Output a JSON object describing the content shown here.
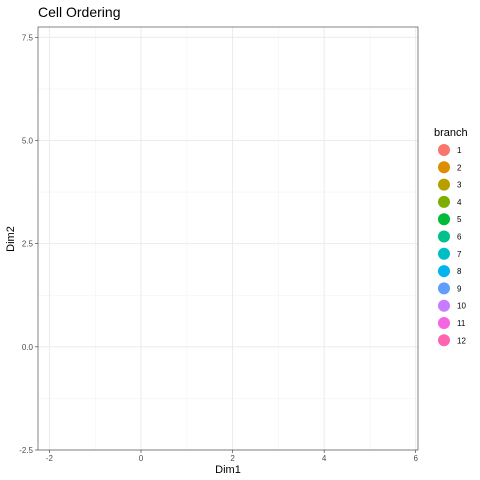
{
  "chart_data": {
    "type": "scatter",
    "title": "Cell Ordering",
    "xlabel": "Dim1",
    "ylabel": "Dim2",
    "xlim": [
      -2.25,
      6.05
    ],
    "ylim": [
      -2.5,
      7.75
    ],
    "x_ticks": [
      -2,
      0,
      2,
      4,
      6
    ],
    "x_tick_labels": [
      "-2",
      "0",
      "2",
      "4",
      "6"
    ],
    "y_ticks": [
      -2.5,
      0.0,
      2.5,
      5.0,
      7.5
    ],
    "y_tick_labels": [
      "-2.5",
      "0.0",
      "2.5",
      "5.0",
      "7.5"
    ],
    "x_minor": [
      -1,
      1,
      3,
      5
    ],
    "y_minor": [
      -1.25,
      1.25,
      3.75,
      6.25
    ],
    "grid": true,
    "legend_position": "right",
    "legend_title": "branch",
    "points": [],
    "series": [
      {
        "name": "1",
        "color": "#F8766D"
      },
      {
        "name": "2",
        "color": "#DE8C00"
      },
      {
        "name": "3",
        "color": "#B79F00"
      },
      {
        "name": "4",
        "color": "#7CAE00"
      },
      {
        "name": "5",
        "color": "#00BA38"
      },
      {
        "name": "6",
        "color": "#00C08B"
      },
      {
        "name": "7",
        "color": "#00BFC4"
      },
      {
        "name": "8",
        "color": "#00B4F0"
      },
      {
        "name": "9",
        "color": "#619CFF"
      },
      {
        "name": "10",
        "color": "#C77CFF"
      },
      {
        "name": "11",
        "color": "#F564E3"
      },
      {
        "name": "12",
        "color": "#FF64B0"
      }
    ]
  }
}
